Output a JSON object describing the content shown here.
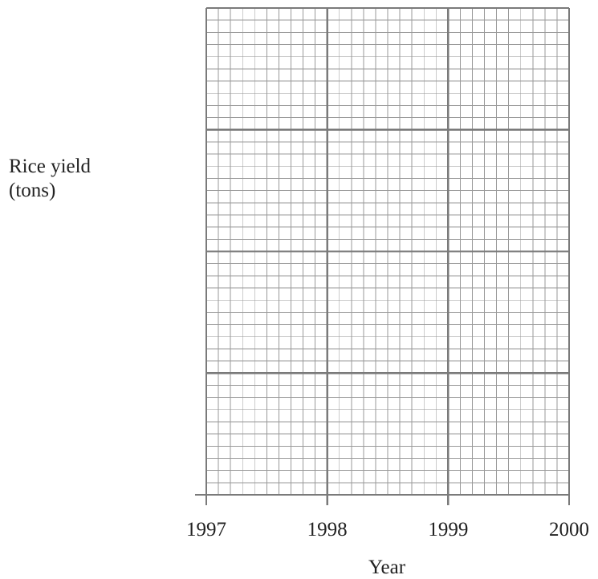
{
  "chart_data": {
    "type": "line",
    "title": "",
    "ylabel_lines": [
      "Rice yield",
      "(tons)"
    ],
    "xlabel": "Year",
    "x_ticks": [
      "1997",
      "1998",
      "1999",
      "2000"
    ],
    "xlim": [
      1997,
      2000
    ],
    "grid": true,
    "grid_minor_per_year": 10,
    "grid_major_rows": 4,
    "grid_minor_per_major_row": 10,
    "series": []
  }
}
